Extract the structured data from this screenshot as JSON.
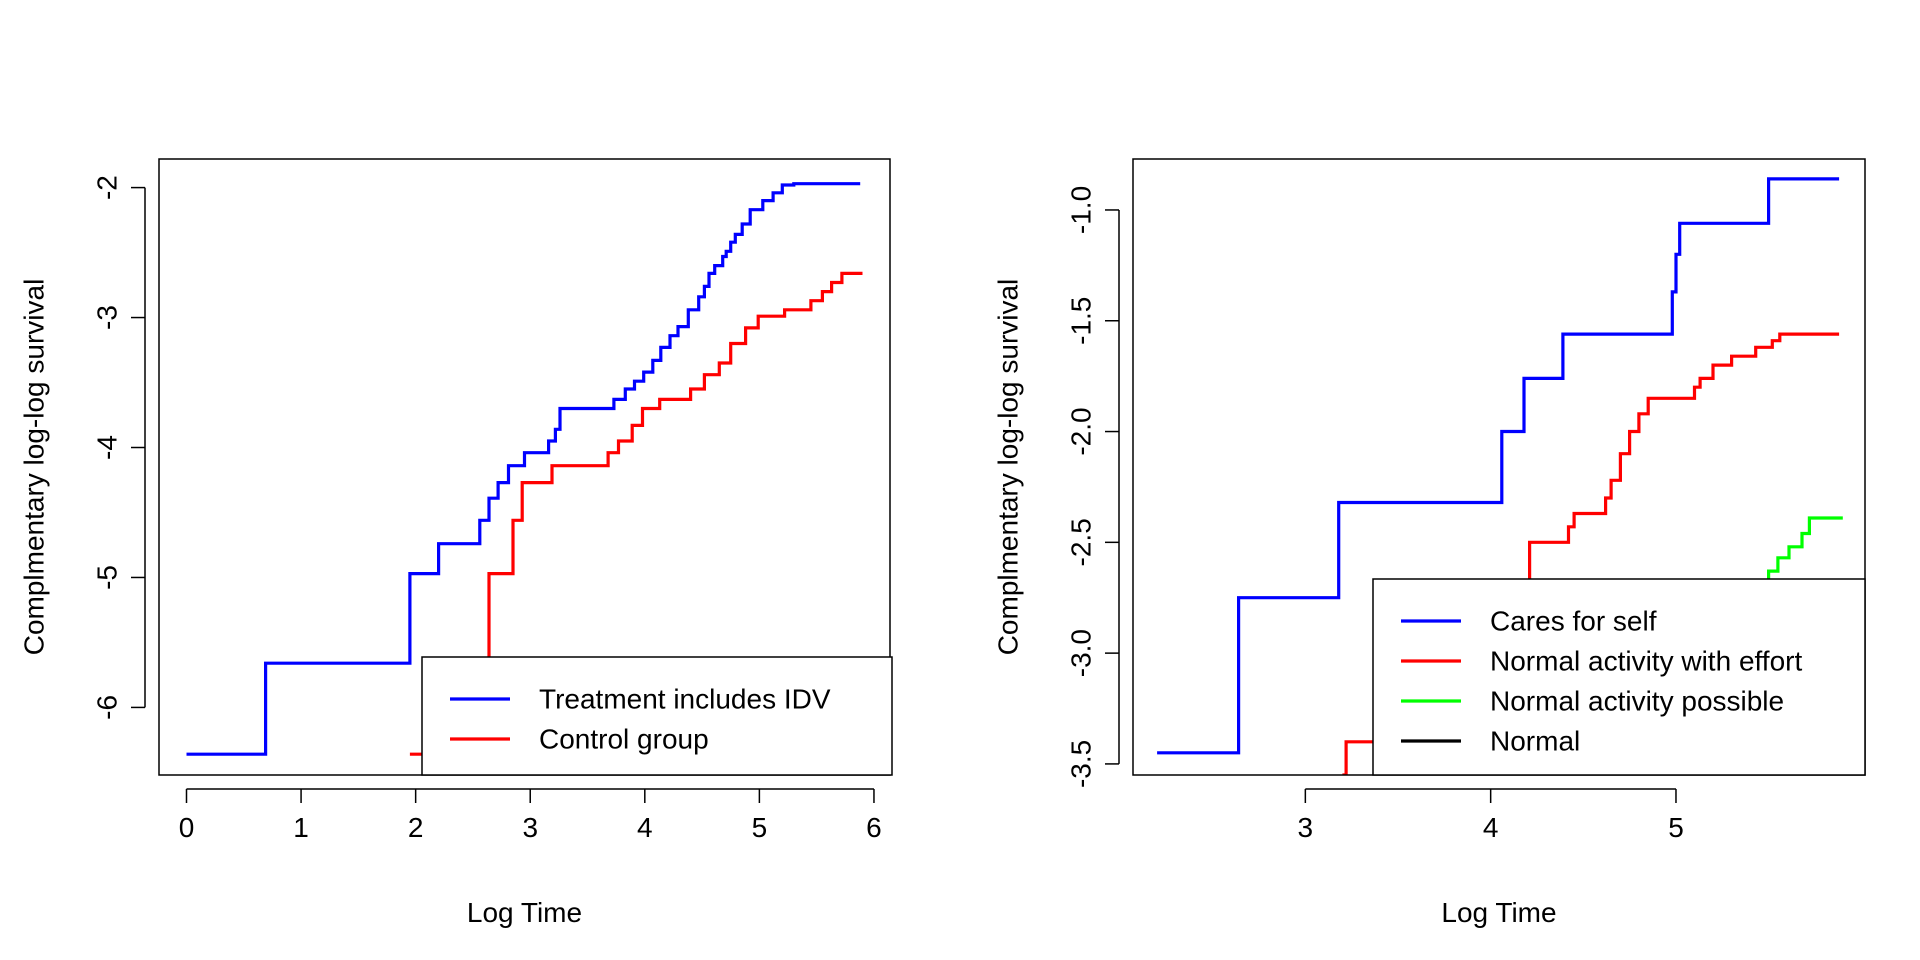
{
  "chart_data": [
    {
      "type": "line",
      "step": true,
      "xlabel": "Log Time",
      "ylabel": "Complmentary log-log survival",
      "xlim": [
        -0.24,
        6.14
      ],
      "ylim": [
        -6.52,
        -1.78
      ],
      "xticks": [
        0,
        1,
        2,
        3,
        4,
        5,
        6
      ],
      "xtick_labels": [
        "0",
        "1",
        "2",
        "3",
        "4",
        "5",
        "6"
      ],
      "yticks": [
        -6,
        -5,
        -4,
        -3,
        -2
      ],
      "ytick_labels": [
        "-6",
        "-5",
        "-4",
        "-3",
        "-2"
      ],
      "grid": false,
      "legend_position": "bottom-right",
      "series": [
        {
          "name": "Treatment includes IDV",
          "color": "#0000FF",
          "x": [
            0,
            0.69,
            1.95,
            2.2,
            2.56,
            2.64,
            2.72,
            2.81,
            2.95,
            3.16,
            3.22,
            3.26,
            3.73,
            3.83,
            3.91,
            3.99,
            4.07,
            4.14,
            4.22,
            4.29,
            4.38,
            4.47,
            4.52,
            4.56,
            4.61,
            4.68,
            4.71,
            4.75,
            4.79,
            4.85,
            4.92,
            5.03,
            5.12,
            5.2,
            5.3,
            5.4,
            5.48,
            5.55,
            5.64,
            5.72,
            5.88
          ],
          "y": [
            -6.36,
            -5.66,
            -4.97,
            -4.74,
            -4.56,
            -4.39,
            -4.27,
            -4.14,
            -4.04,
            -3.95,
            -3.86,
            -3.7,
            -3.63,
            -3.55,
            -3.49,
            -3.42,
            -3.33,
            -3.23,
            -3.14,
            -3.07,
            -2.94,
            -2.84,
            -2.76,
            -2.66,
            -2.6,
            -2.53,
            -2.49,
            -2.42,
            -2.36,
            -2.28,
            -2.17,
            -2.1,
            -2.04,
            -1.98,
            -1.97,
            -1.97,
            -1.97,
            -1.97,
            -1.97,
            -1.97,
            -1.97
          ]
        },
        {
          "name": "Control group",
          "color": "#FF0000",
          "x": [
            1.95,
            2.64,
            2.85,
            2.93,
            3.19,
            3.68,
            3.77,
            3.89,
            3.98,
            4.13,
            4.4,
            4.52,
            4.65,
            4.75,
            4.88,
            4.99,
            5.22,
            5.45,
            5.55,
            5.63,
            5.72,
            5.9
          ],
          "y": [
            -6.36,
            -4.97,
            -4.56,
            -4.27,
            -4.14,
            -4.04,
            -3.95,
            -3.83,
            -3.7,
            -3.63,
            -3.55,
            -3.44,
            -3.35,
            -3.2,
            -3.08,
            -2.99,
            -2.94,
            -2.87,
            -2.8,
            -2.73,
            -2.66,
            -2.66
          ]
        }
      ]
    },
    {
      "type": "line",
      "step": true,
      "xlabel": "Log Time",
      "ylabel": "Complmentary log-log survival",
      "xlim": [
        2.07,
        6.02
      ],
      "ylim": [
        -3.55,
        -0.77
      ],
      "xticks": [
        3,
        4,
        5
      ],
      "xtick_labels": [
        "3",
        "4",
        "5"
      ],
      "yticks": [
        -3.5,
        -3.0,
        -2.5,
        -2.0,
        -1.5,
        -1.0
      ],
      "ytick_labels": [
        "-3.5",
        "-3.0",
        "-2.5",
        "-2.0",
        "-1.5",
        "-1.0"
      ],
      "grid": false,
      "legend_position": "bottom-right",
      "series": [
        {
          "name": "Cares for self",
          "color": "#0000FF",
          "x": [
            2.2,
            2.64,
            3.18,
            4.06,
            4.18,
            4.39,
            4.98,
            5.0,
            5.02,
            5.5,
            5.88
          ],
          "y": [
            -3.45,
            -2.75,
            -2.32,
            -2.0,
            -1.76,
            -1.56,
            -1.37,
            -1.2,
            -1.06,
            -0.86,
            -0.86
          ]
        },
        {
          "name": "Normal activity with effort",
          "color": "#FF0000",
          "x": [
            3.2,
            3.22,
            3.5,
            4.2,
            4.21,
            4.42,
            4.45,
            4.62,
            4.65,
            4.7,
            4.75,
            4.8,
            4.85,
            5.1,
            5.13,
            5.2,
            5.3,
            5.35,
            5.43,
            5.52,
            5.56,
            5.88
          ],
          "y": [
            -3.55,
            -3.4,
            -3.3,
            -2.68,
            -2.5,
            -2.43,
            -2.37,
            -2.3,
            -2.22,
            -2.1,
            -2.0,
            -1.92,
            -1.85,
            -1.8,
            -1.76,
            -1.7,
            -1.66,
            -1.66,
            -1.62,
            -1.59,
            -1.56,
            -1.56
          ]
        },
        {
          "name": "Normal activity possible",
          "color": "#00FF00",
          "x": [
            5.47,
            5.5,
            5.55,
            5.61,
            5.68,
            5.72,
            5.9
          ],
          "y": [
            -2.68,
            -2.63,
            -2.57,
            -2.52,
            -2.46,
            -2.39,
            -2.39
          ]
        },
        {
          "name": "Normal",
          "color": "#000000",
          "x": [],
          "y": []
        }
      ]
    }
  ]
}
